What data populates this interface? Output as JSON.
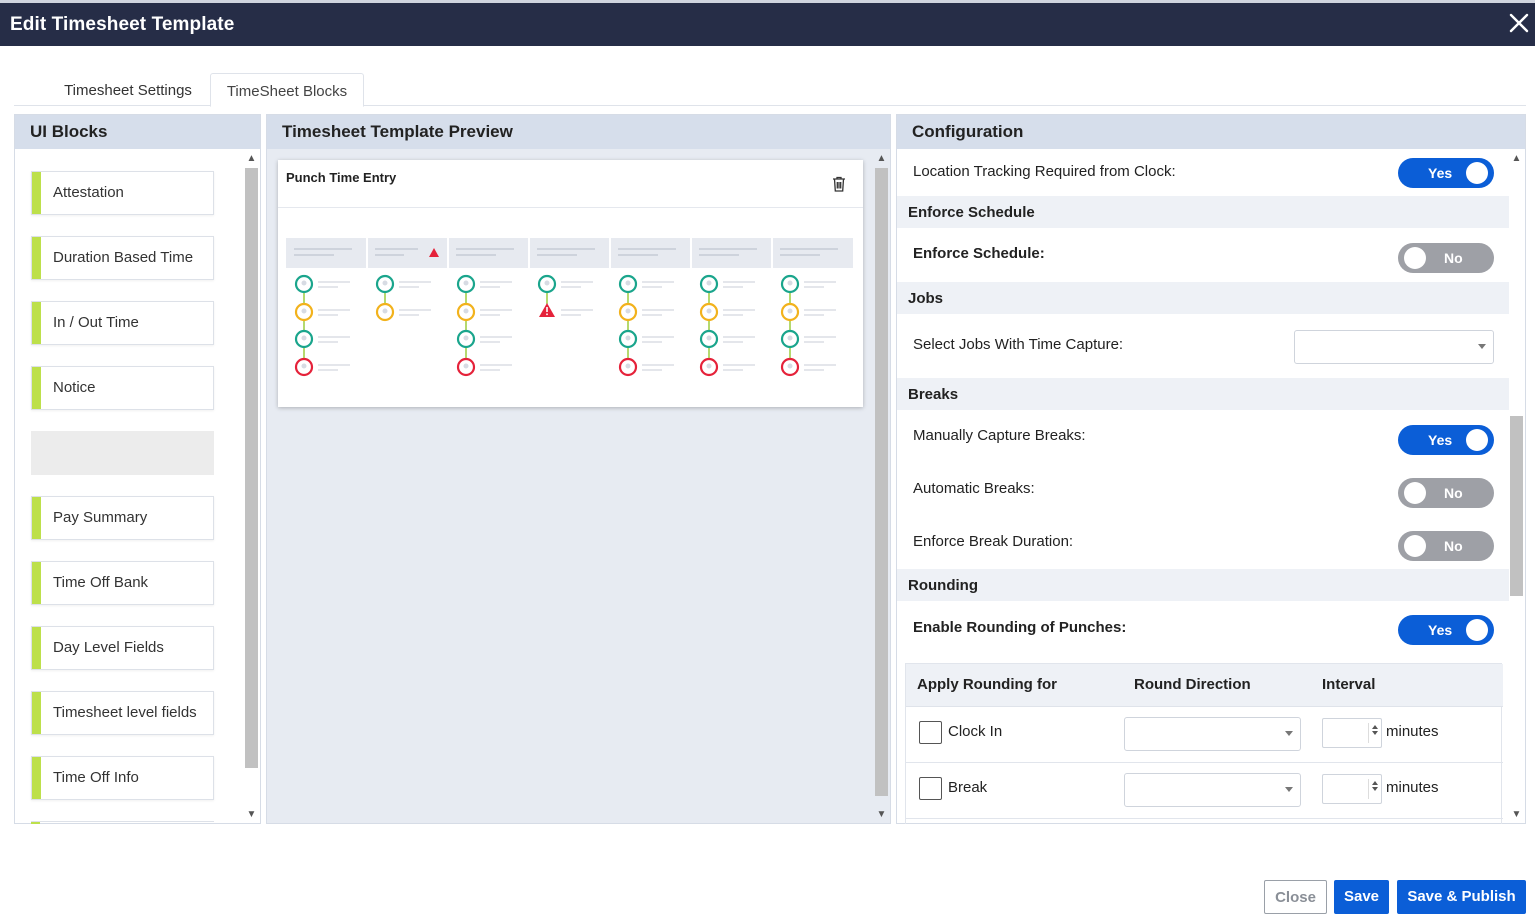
{
  "dialog": {
    "title": "Edit Timesheet Template"
  },
  "tabs": [
    {
      "label": "Timesheet Settings",
      "active": false
    },
    {
      "label": "TimeSheet Blocks",
      "active": true
    }
  ],
  "ui_blocks": {
    "title": "UI Blocks",
    "items": [
      "Attestation",
      "Duration Based Time",
      "In / Out Time",
      "Notice",
      "",
      "Pay Summary",
      "Time Off Bank",
      "Day Level Fields",
      "Timesheet level fields",
      "Time Off Info"
    ]
  },
  "preview": {
    "title": "Timesheet Template Preview",
    "card_title": "Punch Time Entry"
  },
  "configuration": {
    "title": "Configuration",
    "location_tracking": {
      "label": "Location Tracking Required from Clock:",
      "value": "Yes"
    },
    "enforce_schedule_section": "Enforce Schedule",
    "enforce_schedule": {
      "label": "Enforce Schedule:",
      "value": "No"
    },
    "jobs_section": "Jobs",
    "select_jobs": {
      "label": "Select Jobs With Time Capture:",
      "value": ""
    },
    "breaks_section": "Breaks",
    "manual_breaks": {
      "label": "Manually Capture Breaks:",
      "value": "Yes"
    },
    "automatic_breaks": {
      "label": "Automatic Breaks:",
      "value": "No"
    },
    "enforce_break_duration": {
      "label": "Enforce Break Duration:",
      "value": "No"
    },
    "rounding_section": "Rounding",
    "enable_rounding": {
      "label": "Enable Rounding of Punches:",
      "value": "Yes"
    },
    "rounding_table": {
      "headers": [
        "Apply Rounding for",
        "Round Direction",
        "Interval"
      ],
      "rows": [
        {
          "name": "Clock In",
          "direction": "",
          "interval": "",
          "unit": "minutes"
        },
        {
          "name": "Break",
          "direction": "",
          "interval": "",
          "unit": "minutes"
        }
      ]
    }
  },
  "footer": {
    "close_label": "Close",
    "save_label": "Save",
    "publish_label": "Save & Publish"
  },
  "colors": {
    "titlebar": "#262d47",
    "accent": "#0b5ed7",
    "block_marker": "#bde04b",
    "status_green": "#1aa58c",
    "status_amber": "#f2b21c",
    "status_red": "#e5223a"
  }
}
